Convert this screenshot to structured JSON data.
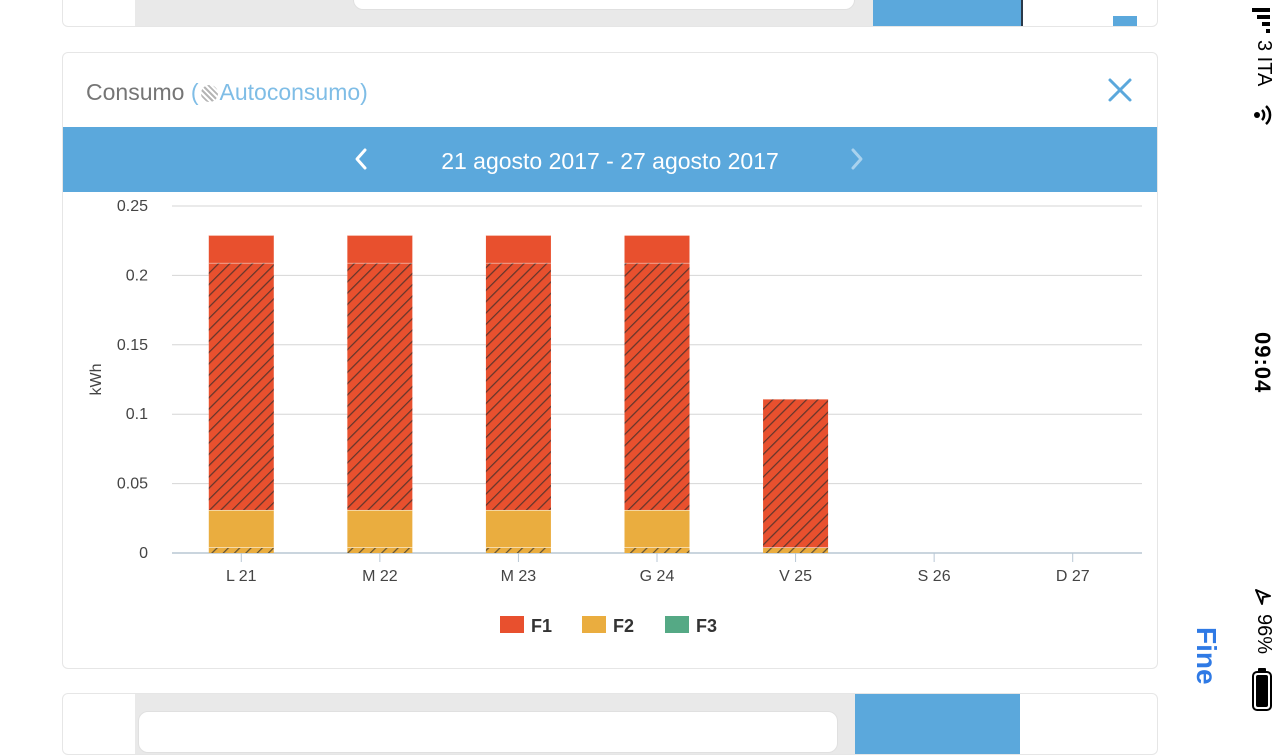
{
  "card": {
    "title": "Consumo",
    "subtitle_open": " (",
    "subtitle": "Autoconsumo",
    "subtitle_close": ")"
  },
  "date_nav": {
    "range": "21 agosto 2017 - 27 agosto 2017"
  },
  "status_bar": {
    "carrier": "3 ITA",
    "time": "09:04",
    "battery": "96%",
    "done": "Fine"
  },
  "colors": {
    "accent": "#5ba8dc",
    "f1": "#e8502e",
    "f2": "#eaad3f",
    "f3": "#55a985"
  },
  "icons": [
    "close-icon",
    "chevron-left-icon",
    "chevron-right-icon",
    "signal-icon",
    "wifi-icon",
    "location-icon",
    "battery-icon"
  ],
  "chart_data": {
    "type": "bar",
    "stacked": true,
    "ylabel": "kWh",
    "ylim": [
      0,
      0.25
    ],
    "yticks": [
      "0",
      "0.05",
      "0.1",
      "0.15",
      "0.2",
      "0.25"
    ],
    "categories": [
      "L 21",
      "M 22",
      "M 23",
      "G 24",
      "V 25",
      "S 26",
      "D 27"
    ],
    "series": [
      {
        "name": "F1",
        "color": "#e8502e",
        "values": [
          0.198,
          0.198,
          0.198,
          0.198,
          0.107,
          0,
          0
        ]
      },
      {
        "name": "F2",
        "color": "#eaad3f",
        "values": [
          0.031,
          0.031,
          0.031,
          0.031,
          0.004,
          0,
          0
        ]
      },
      {
        "name": "F3",
        "color": "#55a985",
        "values": [
          0,
          0,
          0,
          0,
          0,
          0,
          0
        ]
      }
    ],
    "segments": [
      [
        {
          "series": "F2",
          "from": 0,
          "to": 0.004,
          "self_consumed": true
        },
        {
          "series": "F2",
          "from": 0.004,
          "to": 0.031,
          "self_consumed": false
        },
        {
          "series": "F1",
          "from": 0.031,
          "to": 0.209,
          "self_consumed": true
        },
        {
          "series": "F1",
          "from": 0.209,
          "to": 0.229,
          "self_consumed": false
        }
      ],
      [
        {
          "series": "F2",
          "from": 0,
          "to": 0.004,
          "self_consumed": true
        },
        {
          "series": "F2",
          "from": 0.004,
          "to": 0.031,
          "self_consumed": false
        },
        {
          "series": "F1",
          "from": 0.031,
          "to": 0.209,
          "self_consumed": true
        },
        {
          "series": "F1",
          "from": 0.209,
          "to": 0.229,
          "self_consumed": false
        }
      ],
      [
        {
          "series": "F2",
          "from": 0,
          "to": 0.004,
          "self_consumed": true
        },
        {
          "series": "F2",
          "from": 0.004,
          "to": 0.031,
          "self_consumed": false
        },
        {
          "series": "F1",
          "from": 0.031,
          "to": 0.209,
          "self_consumed": true
        },
        {
          "series": "F1",
          "from": 0.209,
          "to": 0.229,
          "self_consumed": false
        }
      ],
      [
        {
          "series": "F2",
          "from": 0,
          "to": 0.004,
          "self_consumed": true
        },
        {
          "series": "F2",
          "from": 0.004,
          "to": 0.031,
          "self_consumed": false
        },
        {
          "series": "F1",
          "from": 0.031,
          "to": 0.209,
          "self_consumed": true
        },
        {
          "series": "F1",
          "from": 0.209,
          "to": 0.229,
          "self_consumed": false
        }
      ],
      [
        {
          "series": "F2",
          "from": 0,
          "to": 0.004,
          "self_consumed": true
        },
        {
          "series": "F1",
          "from": 0.004,
          "to": 0.111,
          "self_consumed": true
        }
      ],
      [],
      []
    ],
    "legend": [
      "F1",
      "F2",
      "F3"
    ],
    "legend_position": "bottom-center",
    "grid": true
  }
}
